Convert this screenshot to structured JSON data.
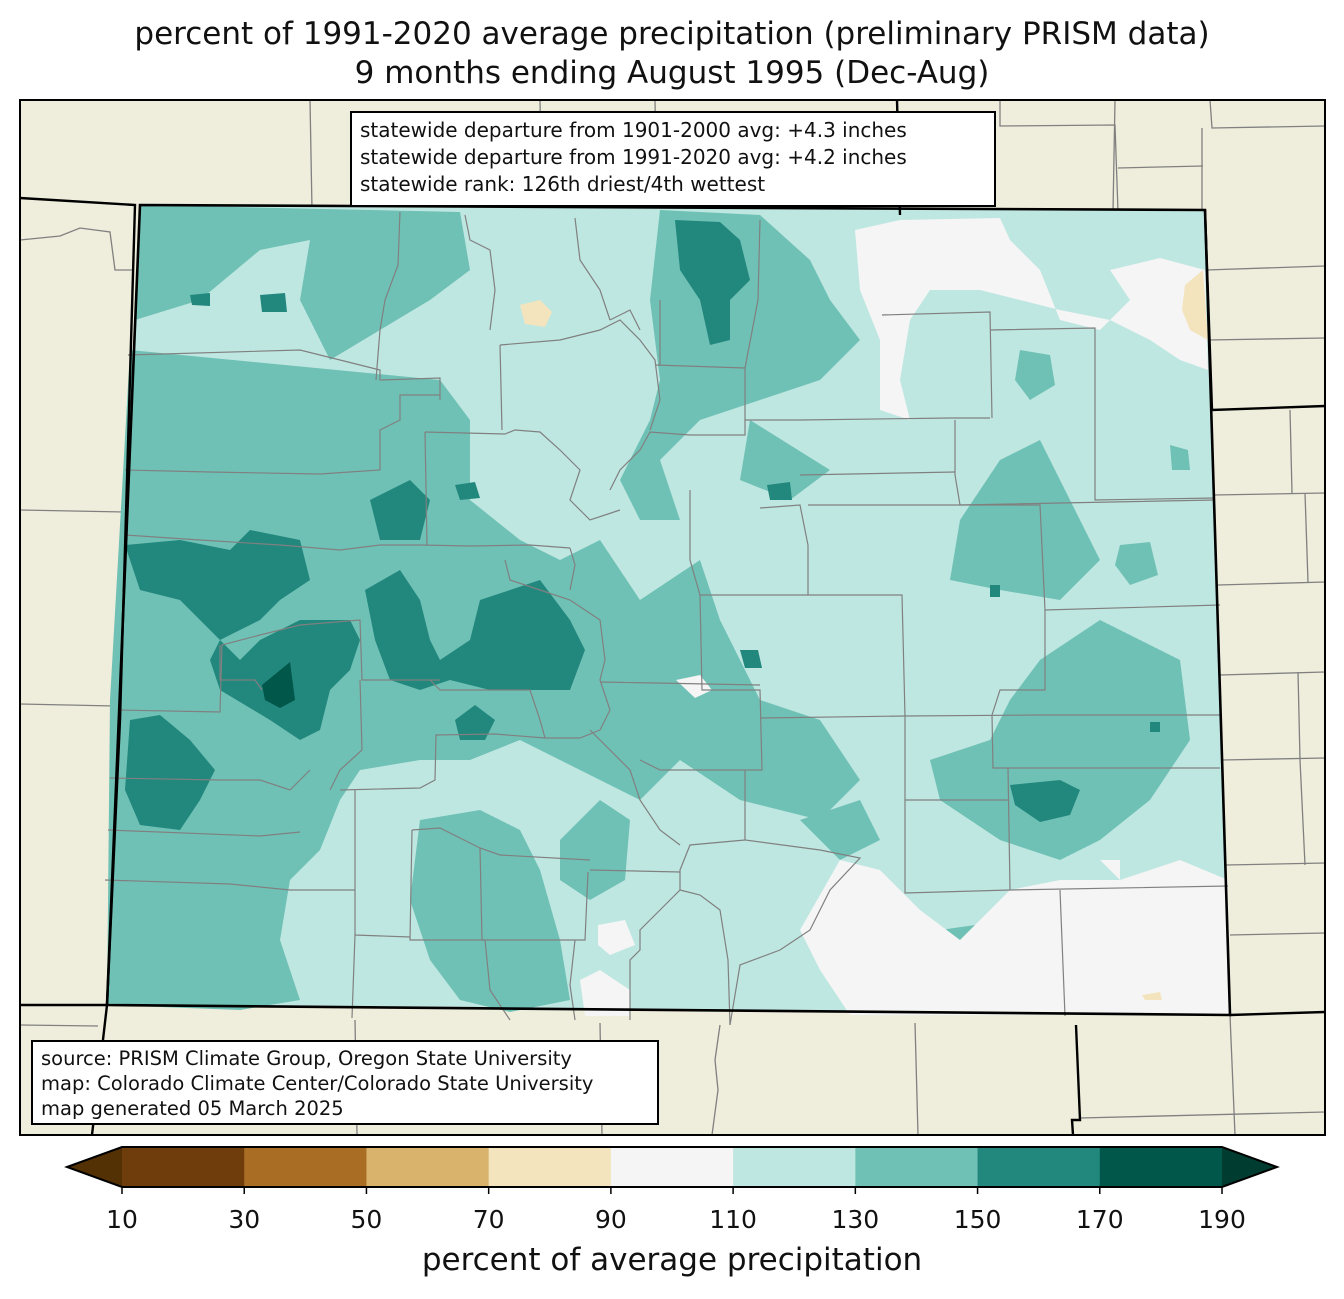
{
  "title": {
    "line1": "percent of 1991-2020 average precipitation (preliminary PRISM data)",
    "line2": "9 months ending August 1995 (Dec-Aug)"
  },
  "stats_box": {
    "line1": "statewide departure from 1901-2000 avg: +4.3 inches",
    "line2": "statewide departure from 1991-2020 avg: +4.2 inches",
    "line3": "statewide rank: 126th driest/4th wettest"
  },
  "credits_box": {
    "line1": "source: PRISM Climate Group, Oregon State University",
    "line2": "map: Colorado Climate Center/Colorado State University",
    "line3": "map generated 05 March 2025"
  },
  "colorbar": {
    "label": "percent of average precipitation",
    "ticks": [
      "10",
      "30",
      "50",
      "70",
      "90",
      "110",
      "130",
      "150",
      "170",
      "190"
    ],
    "under_color": "#543005",
    "over_color": "#003c30",
    "bins": [
      {
        "from": 10,
        "to": 30,
        "color": "#6f3d0b"
      },
      {
        "from": 30,
        "to": 50,
        "color": "#a96e24"
      },
      {
        "from": 50,
        "to": 70,
        "color": "#d9b26c"
      },
      {
        "from": 70,
        "to": 90,
        "color": "#f4e4bd"
      },
      {
        "from": 90,
        "to": 110,
        "color": "#f4f5f4"
      },
      {
        "from": 110,
        "to": 130,
        "color": "#bfe7e1"
      },
      {
        "from": 130,
        "to": 150,
        "color": "#70c1b5"
      },
      {
        "from": 150,
        "to": 170,
        "color": "#22877d"
      },
      {
        "from": 170,
        "to": 190,
        "color": "#00574a"
      }
    ]
  },
  "map_colors": {
    "land_outside": "#efeddc",
    "state_border": "#000000",
    "county_border": "#808080"
  }
}
